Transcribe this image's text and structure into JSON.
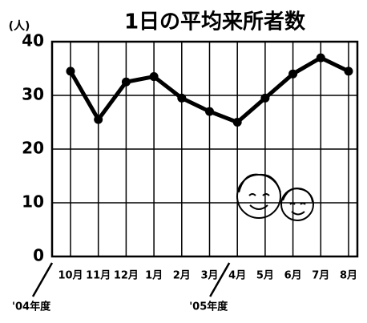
{
  "chart_data": {
    "type": "line",
    "title": "1日の平均来所者数",
    "y_label": "(人)",
    "categories": [
      "10月",
      "11月",
      "12月",
      "1月",
      "2月",
      "3月",
      "4月",
      "5月",
      "6月",
      "7月",
      "8月"
    ],
    "series": [
      {
        "color": "#000000",
        "values": [
          34.5,
          25.5,
          32.5,
          33.5,
          29.5,
          27,
          25,
          29.5,
          34,
          37,
          34.5
        ]
      }
    ],
    "annotations": [
      "'04年度",
      "'05年度"
    ],
    "ylim": [
      0,
      40
    ],
    "yticks": [
      0,
      10,
      20,
      30,
      40
    ],
    "grid": true
  }
}
